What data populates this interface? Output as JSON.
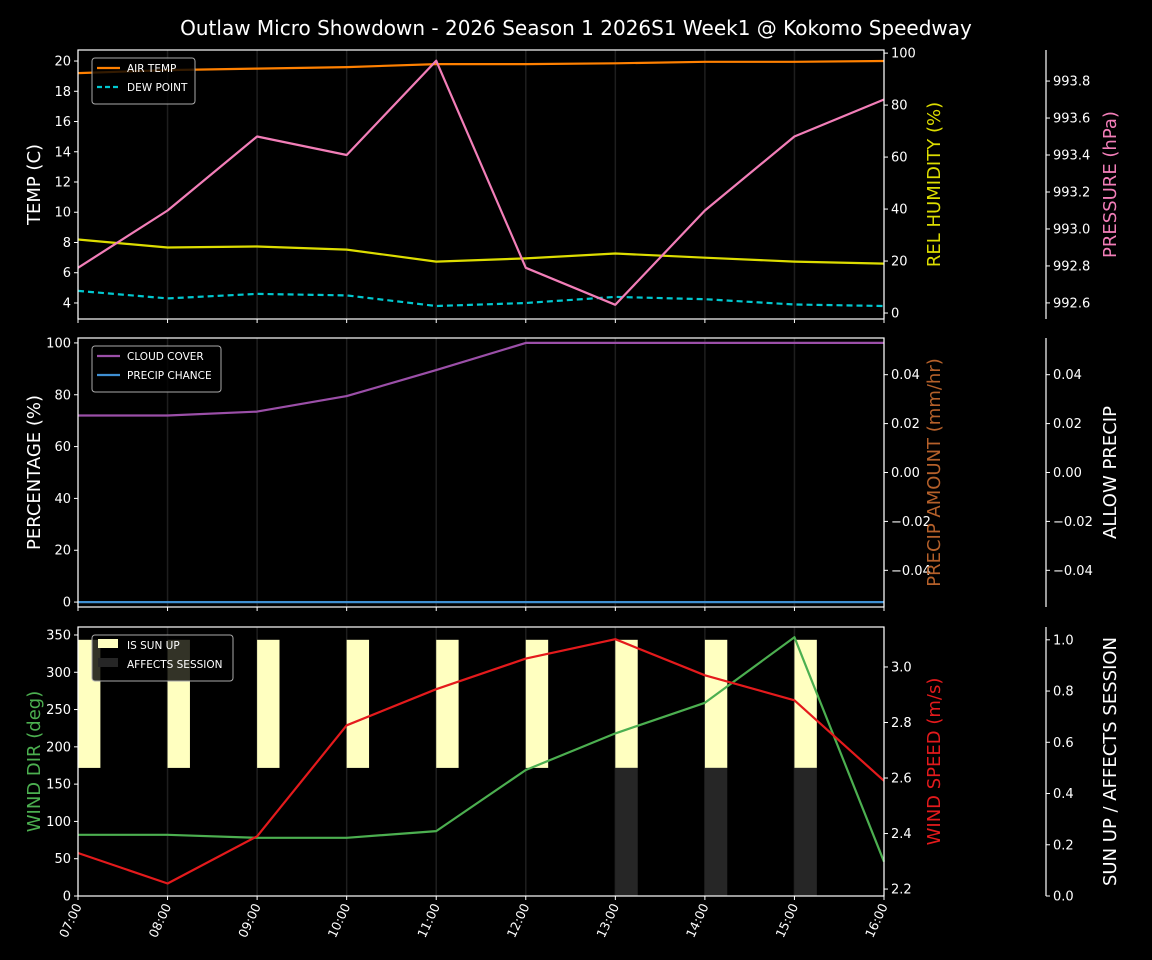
{
  "title": "Outlaw Micro Showdown - 2026 Season 1 2026S1 Week1 @ Kokomo Speedway",
  "chart_data": [
    {
      "type": "line",
      "panel": "temperature",
      "x": [
        "07:00",
        "08:00",
        "09:00",
        "10:00",
        "11:00",
        "12:00",
        "13:00",
        "14:00",
        "15:00",
        "16:00"
      ],
      "axes": {
        "left": {
          "label": "TEMP (C)",
          "range": [
            2.94,
            20.73
          ],
          "ticks": [
            4,
            6,
            8,
            10,
            12,
            14,
            16,
            18,
            20
          ],
          "color": "#ffffff"
        },
        "right": {
          "label": "REL HUMIDITY (%)",
          "range": [
            -2.3,
            101.2
          ],
          "ticks": [
            0,
            20,
            40,
            60,
            80,
            100
          ],
          "color": "#dddd00"
        },
        "right2": {
          "label": "PRESSURE (hPa)",
          "range": [
            992.513,
            993.968
          ],
          "ticks": [
            992.6,
            992.8,
            993.0,
            993.2,
            993.4,
            993.6,
            993.8
          ],
          "color": "#f27eb8"
        }
      },
      "series": [
        {
          "name": "AIR TEMP",
          "axis": "left",
          "color": "#ff8000",
          "dash": false,
          "values": [
            19.2,
            19.4,
            19.5,
            19.6,
            19.8,
            19.8,
            19.85,
            19.95,
            19.95,
            20.0
          ]
        },
        {
          "name": "DEW POINT",
          "axis": "left",
          "color": "#00c8d0",
          "dash": true,
          "values": [
            4.8,
            4.3,
            4.6,
            4.5,
            3.8,
            4.0,
            4.4,
            4.25,
            3.9,
            3.8
          ]
        },
        {
          "axis": "right",
          "color": "#dddd00",
          "dash": false,
          "values": [
            28.3,
            25.2,
            25.6,
            24.4,
            19.8,
            21.0,
            22.9,
            21.3,
            19.8,
            19.0
          ]
        },
        {
          "axis": "right2",
          "color": "#f27eb8",
          "dash": false,
          "values": [
            992.79,
            993.1,
            993.5,
            993.4,
            993.91,
            992.79,
            992.59,
            993.1,
            993.5,
            993.7
          ]
        }
      ],
      "legend": "top-left"
    },
    {
      "type": "line",
      "panel": "precipitation",
      "x": [
        "07:00",
        "08:00",
        "09:00",
        "10:00",
        "11:00",
        "12:00",
        "13:00",
        "14:00",
        "15:00",
        "16:00"
      ],
      "axes": {
        "left": {
          "label": "PERCENTAGE (%)",
          "range": [
            -1.9,
            101.9
          ],
          "ticks": [
            0,
            20,
            40,
            60,
            80,
            100
          ],
          "color": "#ffffff"
        },
        "right": {
          "label": "PRECIP AMOUNT (mm/hr)",
          "range": [
            -0.055,
            0.055
          ],
          "ticks": [
            -0.04,
            -0.02,
            0.0,
            0.02,
            0.04
          ],
          "color": "#b5602a"
        },
        "right2": {
          "label": "ALLOW PRECIP",
          "range": [
            -0.055,
            0.055
          ],
          "ticks": [
            -0.04,
            -0.02,
            0.0,
            0.02,
            0.04
          ],
          "color": "#ffffff"
        }
      },
      "series": [
        {
          "name": "CLOUD COVER",
          "axis": "left",
          "color": "#9b4fa8",
          "dash": false,
          "values": [
            72,
            72,
            73.5,
            79.5,
            89.5,
            100,
            100,
            100,
            100,
            100
          ]
        },
        {
          "name": "PRECIP CHANCE",
          "axis": "left",
          "color": "#3f8fd2",
          "dash": false,
          "values": [
            0,
            0,
            0,
            0,
            0,
            0,
            0,
            0,
            0,
            0
          ]
        }
      ],
      "legend": "top-left"
    },
    {
      "type": "line",
      "panel": "wind",
      "x": [
        "07:00",
        "08:00",
        "09:00",
        "10:00",
        "11:00",
        "12:00",
        "13:00",
        "14:00",
        "15:00",
        "16:00"
      ],
      "axes": {
        "left": {
          "label": "WIND DIR (deg)",
          "range": [
            0,
            360.7
          ],
          "ticks": [
            0,
            50,
            100,
            150,
            200,
            250,
            300,
            350
          ],
          "color": "#4caf50"
        },
        "right": {
          "label": "WIND SPEED (m/s)",
          "range": [
            2.175,
            3.144
          ],
          "ticks": [
            2.2,
            2.4,
            2.6,
            2.8,
            3.0
          ],
          "color": "#e41a1c"
        },
        "right2": {
          "label": "SUN UP / AFFECTS SESSION",
          "range": [
            0,
            1.05
          ],
          "ticks": [
            0.0,
            0.2,
            0.4,
            0.6,
            0.8,
            1.0
          ],
          "color": "#ffffff"
        }
      },
      "series": [
        {
          "axis": "left",
          "color": "#4caf50",
          "dash": false,
          "values": [
            82,
            82,
            78,
            78,
            87,
            169,
            218,
            259,
            347,
            46
          ]
        },
        {
          "axis": "right",
          "color": "#e41a1c",
          "dash": false,
          "values": [
            2.33,
            2.22,
            2.39,
            2.79,
            2.92,
            3.03,
            3.1,
            2.97,
            2.88,
            2.59
          ]
        }
      ],
      "bars": [
        {
          "name": "IS SUN UP",
          "color": "#ffffc0",
          "values": [
            1,
            1,
            1,
            1,
            1,
            1,
            1,
            1,
            1,
            1
          ]
        },
        {
          "name": "AFFECTS SESSION",
          "color": "#262626",
          "values": [
            0,
            0,
            0,
            0,
            0,
            0,
            1,
            1,
            1,
            0
          ]
        }
      ],
      "legend": "top-left"
    }
  ]
}
